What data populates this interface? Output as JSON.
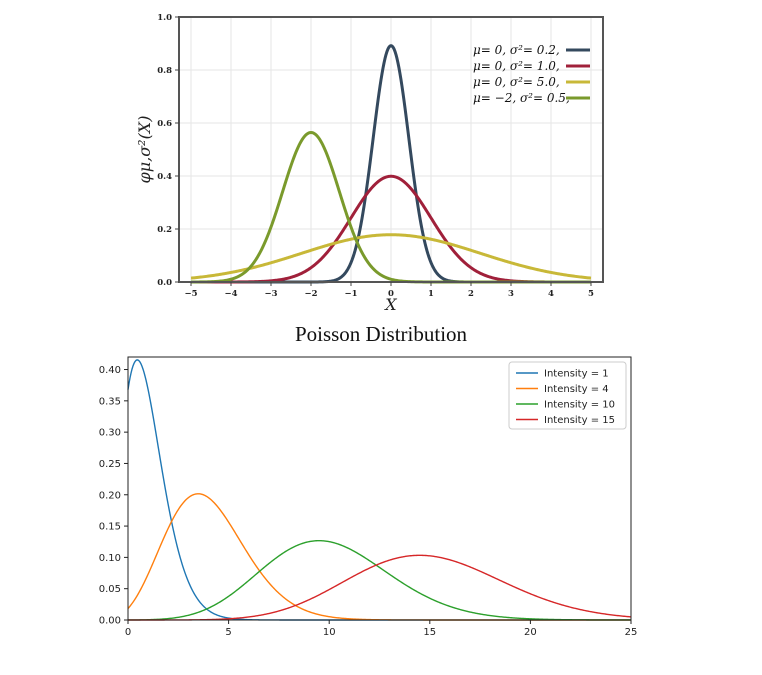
{
  "colors": {
    "normal": [
      "#34495e",
      "#a0203a",
      "#c8b838",
      "#7a9a2c"
    ],
    "poisson": [
      "#1f77b4",
      "#ff7f0e",
      "#2ca02c",
      "#d62728"
    ]
  },
  "chart_data": [
    {
      "type": "line",
      "title": "",
      "xlabel": "X",
      "ylabel": "φμ,σ²(X)",
      "xlim": [
        -5.3,
        5.3
      ],
      "ylim": [
        0,
        1.0
      ],
      "xticks": [
        "−5",
        "−4",
        "−3",
        "−2",
        "−1",
        "0",
        "1",
        "2",
        "3",
        "4",
        "5"
      ],
      "yticks": [
        "0.0",
        "0.2",
        "0.4",
        "0.6",
        "0.8",
        "1.0"
      ],
      "grid": true,
      "legend_position": "top-right",
      "series": [
        {
          "name": "μ= 0,   σ²= 0.2,",
          "mu": 0,
          "sigma2": 0.2
        },
        {
          "name": "μ= 0,   σ²= 1.0,",
          "mu": 0,
          "sigma2": 1.0
        },
        {
          "name": "μ= 0,   σ²= 5.0,",
          "mu": 0,
          "sigma2": 5.0
        },
        {
          "name": "μ= −2,  σ²= 0.5,",
          "mu": -2,
          "sigma2": 0.5
        }
      ]
    },
    {
      "type": "line",
      "title": "Poisson Distribution",
      "xlabel": "",
      "ylabel": "",
      "xlim": [
        0,
        25
      ],
      "ylim": [
        0,
        0.42
      ],
      "xticks": [
        "0",
        "5",
        "10",
        "15",
        "20",
        "25"
      ],
      "yticks": [
        "0.00",
        "0.05",
        "0.10",
        "0.15",
        "0.20",
        "0.25",
        "0.30",
        "0.35",
        "0.40"
      ],
      "grid": false,
      "legend_position": "top-right",
      "series": [
        {
          "name": "Intensity = 1",
          "intensity": 1
        },
        {
          "name": "Intensity = 4",
          "intensity": 4
        },
        {
          "name": "Intensity = 10",
          "intensity": 10
        },
        {
          "name": "Intensity = 15",
          "intensity": 15
        }
      ]
    }
  ]
}
